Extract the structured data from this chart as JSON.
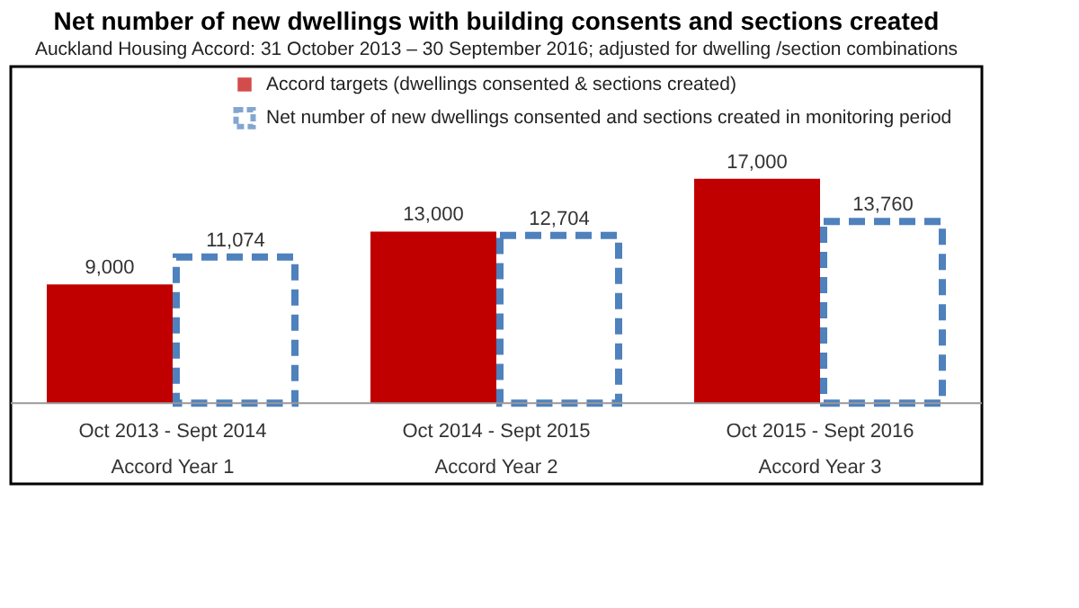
{
  "chart_data": {
    "type": "bar",
    "title": "Net number of new dwellings with building consents and sections created",
    "subtitle": "Auckland Housing Accord: 31 October 2013 – 30 September 2016; adjusted for dwelling /section combinations",
    "categories": [
      "Oct 2013 - Sept 2014\nAccord Year 1",
      "Oct 2014 - Sept 2015\nAccord Year 2",
      "Oct 2015 - Sept 2016\nAccord Year 3"
    ],
    "series": [
      {
        "name": "Accord targets (dwellings consented & sections created)",
        "color": "#c00000",
        "values": [
          9000,
          13000,
          17000
        ],
        "value_labels": [
          "9,000",
          "13,000",
          "17,000"
        ]
      },
      {
        "name": "Net number of new dwellings consented and sections created in monitoring period",
        "color": "#4f81bd",
        "values": [
          11074,
          12704,
          13760
        ],
        "value_labels": [
          "11,074",
          "12,704",
          "13,760"
        ],
        "line_style": "dashed"
      }
    ],
    "legend": "top",
    "tick_labels": "x"
  }
}
